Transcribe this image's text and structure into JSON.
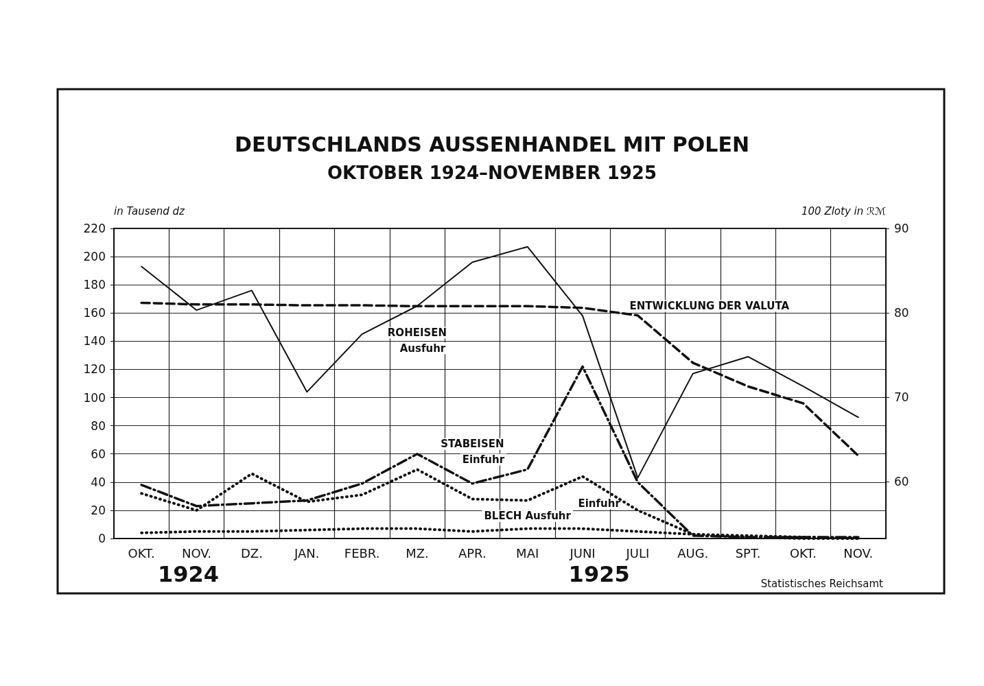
{
  "chart_data": {
    "type": "line",
    "title": "DEUTSCHLANDS AUSSENHANDEL MIT POLEN",
    "subtitle": "OKTOBER 1924–NOVEMBER 1925",
    "ylabel": "in Tausend dz",
    "y2label": "100 Zloty in ℛℳ",
    "categories": [
      "OKT.",
      "NOV.",
      "DZ.",
      "JAN.",
      "FEBR.",
      "MZ.",
      "APR.",
      "MAI",
      "JUNI",
      "JULI",
      "AUG.",
      "SPT.",
      "OKT.",
      "NOV."
    ],
    "series": [
      {
        "color": "#111111",
        "line_style": "dotted",
        "values": [
          4,
          5,
          5,
          6,
          7,
          7,
          5,
          7,
          7,
          5,
          3,
          2,
          1,
          0
        ]
      },
      {
        "color": "#111111",
        "line_style": "dotted",
        "values": [
          32,
          20,
          46,
          26,
          31,
          49,
          28,
          27,
          44,
          20,
          3,
          1,
          0,
          0
        ]
      },
      {
        "color": "#111111",
        "line_style": "dashdot",
        "values": [
          38,
          23,
          25,
          27,
          39,
          60,
          39,
          49,
          122,
          40,
          2,
          1,
          1,
          1
        ]
      },
      {
        "color": "#111111",
        "line_style": "solid",
        "values": [
          193,
          162,
          176,
          104,
          145,
          165,
          196,
          207,
          158,
          43,
          117,
          129,
          108,
          86
        ]
      },
      {
        "color": "#111111",
        "line_style": "dashed",
        "axis": "y2",
        "values": [
          81.2,
          81.0,
          81.0,
          80.9,
          80.9,
          80.8,
          80.8,
          80.8,
          80.6,
          79.7,
          74.1,
          71.3,
          69.3,
          63.1
        ]
      }
    ],
    "ylim": [
      0,
      220
    ],
    "yticks": [
      0,
      20,
      40,
      60,
      80,
      100,
      120,
      140,
      160,
      180,
      200,
      220
    ],
    "y2lim": [
      53.3,
      90
    ],
    "y2ticks": [
      60,
      70,
      80,
      90
    ],
    "annotations": [
      "BLECH Ausfuhr",
      "Einfuhr",
      "STABEISEN",
      "Einfuhr",
      "ROHEISEN",
      "Ausfuhr",
      "ENTWICKLUNG DER VALUTA",
      "1924",
      "1925",
      "Statistisches Reichsamt"
    ],
    "grid": true,
    "marker": "none"
  }
}
